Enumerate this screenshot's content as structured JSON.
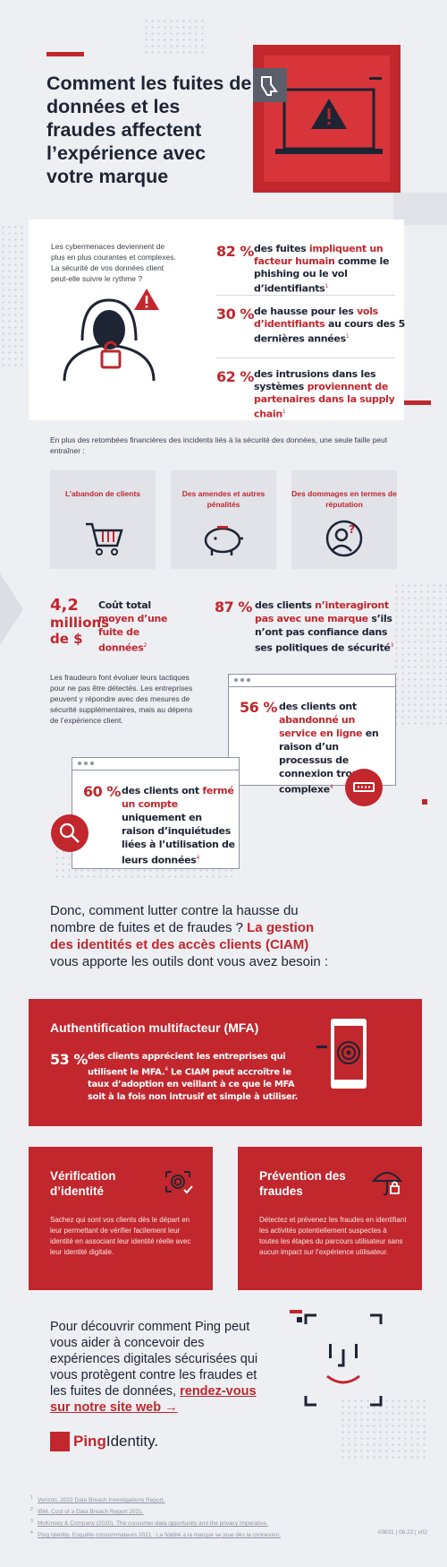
{
  "hero": {
    "title": "Comment les fuites de données et les fraudes affectent l’expérience avec votre marque"
  },
  "intro": {
    "text": "Les cybermenaces deviennent de plus en plus courantes et complexes. La sécurité de vos données client peut-elle suivre le rythme ?"
  },
  "stats_top": [
    {
      "pct": "82 %",
      "pre": "des fuites ",
      "hl": "impliquent un facteur humain",
      "post": " comme le phishing ou le vol d’identifiants",
      "ref": "1"
    },
    {
      "pct": "30 %",
      "pre": "de hausse pour les ",
      "hl": "vols d’identifiants",
      "post": " au cours des 5 dernières années",
      "ref": "1"
    },
    {
      "pct": "62 %",
      "pre": "des intrusions dans les systèmes ",
      "hl": "proviennent de partenaires dans la supply chain",
      "post": "",
      "ref": "1"
    }
  ],
  "consequences": {
    "intro": "En plus des retombées financières des incidents liés à la sécurité des données, une seule faille peut entraîner :",
    "tiles": [
      {
        "label": "L’abandon de clients",
        "icon": "shopping-cart-icon"
      },
      {
        "label": "Des amendes et autres pénalités",
        "icon": "piggy-bank-icon"
      },
      {
        "label": "Des dommages en termes de réputation",
        "icon": "user-question-icon"
      }
    ]
  },
  "cost": {
    "num": "4,2",
    "unit": "millions de $",
    "pre": "Coût total ",
    "hl": "moyen d’une fuite de données",
    "ref": "2"
  },
  "trust": {
    "pct": "87 %",
    "pre": "des clients ",
    "hl": "n’interagiront pas avec une marque",
    "post": " s’ils n’ont pas confiance dans ses politiques de sécurité",
    "ref": "3"
  },
  "fraud_text": "Les fraudeurs font évoluer leurs tactiques pour ne pas être détectés. Les entreprises peuvent y répondre avec des mesures de sécurité supplémentaires, mais au dépens de l’expérience client.",
  "abandon": {
    "pct": "56 %",
    "pre": "des clients ont ",
    "hl": "abandonné un service en ligne",
    "post": " en raison d’un processus de connexion trop complexe",
    "ref": "4"
  },
  "closed": {
    "pct": "60 %",
    "pre": "des clients ont ",
    "hl": "fermé un compte",
    "post": " uniquement en raison d’inquiétudes liées à l’utilisation de leurs données",
    "ref": "4"
  },
  "question": {
    "pre": "Donc, comment lutter contre la hausse du nombre de fuites et de fraudes ? ",
    "hl": "La gestion des identités et des accès clients (CIAM)",
    "post": " vous apporte les outils dont vous avez besoin :"
  },
  "mfa": {
    "title": "Authentification multifacteur (MFA)",
    "pct": "53 %",
    "text": "des clients apprécient les entreprises qui utilisent le MFA.",
    "ref": "4",
    "text2": " Le CIAM peut accroître le taux d’adoption en veillant à ce que le MFA soit à la fois non intrusif et simple à utiliser."
  },
  "features": [
    {
      "title": "Vérification d’identité",
      "text": "Sachez qui sont vos clients dès le départ en leur permettant de vérifier facilement leur identité en associant leur identité réelle avec leur identité digitale.",
      "icon": "fingerprint-check-icon"
    },
    {
      "title": "Prévention des fraudes",
      "text": "Détectez et prévenez les fraudes en identifiant les activités potentiellement suspectes à toutes les étapes du parcours utilisateur sans aucun impact sur l’expérience utilisateur.",
      "icon": "umbrella-lock-icon"
    }
  ],
  "cta": {
    "text": "Pour découvrir comment Ping peut vous aider à concevoir des expériences digitales sécurisées qui vous protègent contre les fraudes et les fuites de données, ",
    "link": "rendez-vous sur notre site web →"
  },
  "logo": {
    "ping": "Ping",
    "identity": "Identity."
  },
  "references": [
    {
      "n": "1",
      "text": "Verizon. 2022 Data Breach Investigations Report."
    },
    {
      "n": "2",
      "text": "IBM. Cost of a Data Breach Report 2021."
    },
    {
      "n": "3",
      "text": "McKinsey & Company (2020). The consumer-data opportunity and the privacy imperative."
    },
    {
      "n": "4",
      "text": "Ping Identity. Enquête consommateurs 2021 : La fidélité à la marque se joue dès la connexion."
    }
  ],
  "footer_code": "#3631  |  08.22  |  v02",
  "colors": {
    "accent": "#c1272d",
    "navy": "#1d2433",
    "background": "#eeeff3"
  }
}
